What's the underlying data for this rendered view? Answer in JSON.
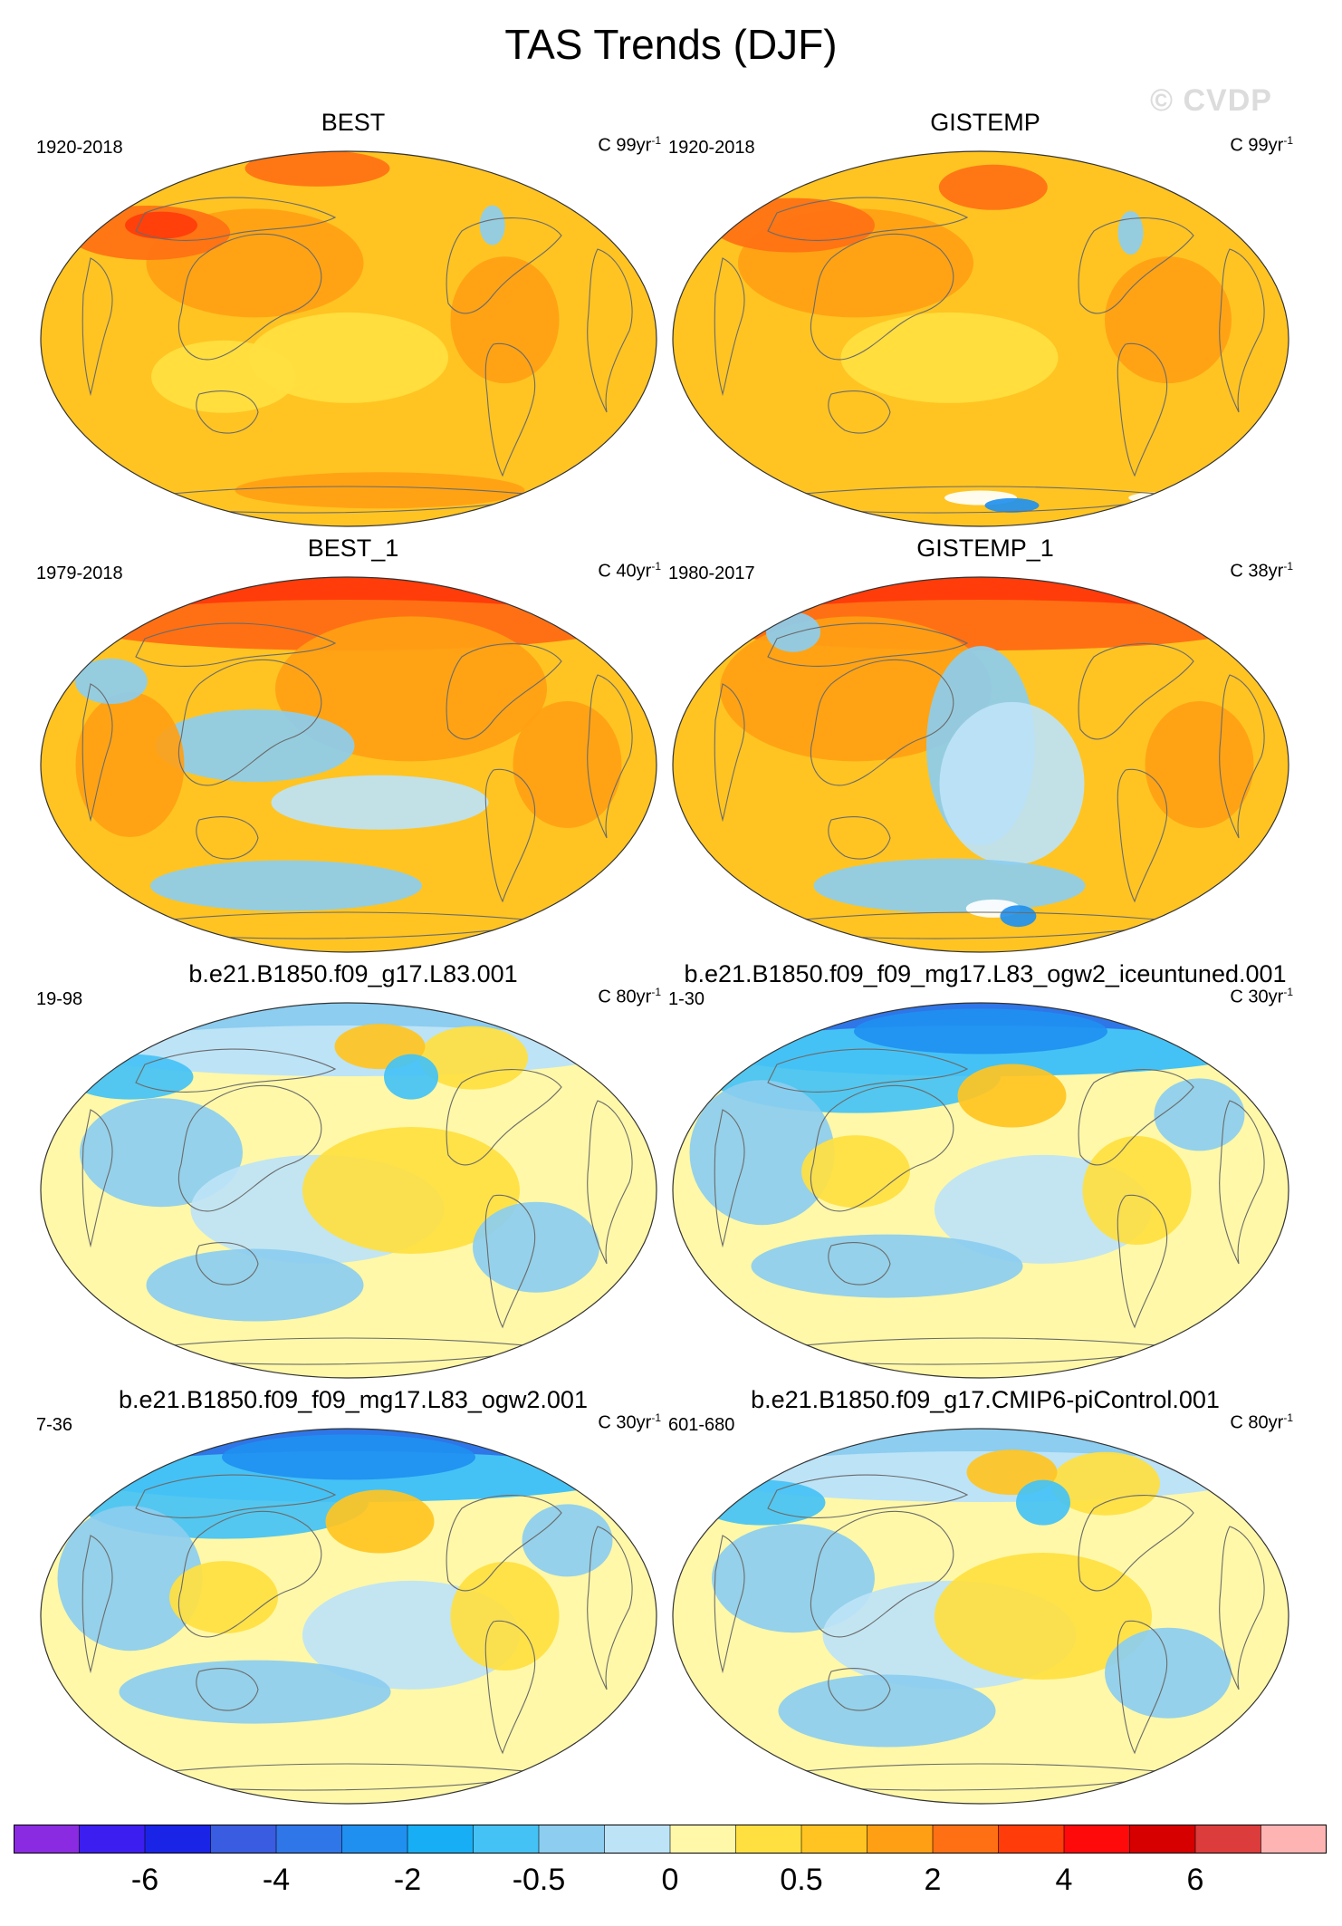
{
  "title": "TAS Trends (DJF)",
  "watermark": "© CVDP",
  "panels": [
    {
      "title": "BEST",
      "period": "1920-2018",
      "units_prefix": "C 99yr",
      "units_exp": "-1",
      "scheme": "warm_strong"
    },
    {
      "title": "GISTEMP",
      "period": "1920-2018",
      "units_prefix": "C 99yr",
      "units_exp": "-1",
      "scheme": "warm_strong_missing"
    },
    {
      "title": "BEST_1",
      "period": "1979-2018",
      "units_prefix": "C 40yr",
      "units_exp": "-1",
      "scheme": "warm_arctic"
    },
    {
      "title": "GISTEMP_1",
      "period": "1980-2017",
      "units_prefix": "C 38yr",
      "units_exp": "-1",
      "scheme": "warm_arctic_missing"
    },
    {
      "title": "b.e21.B1850.f09_g17.L83.001",
      "period": "19-98",
      "units_prefix": "C 80yr",
      "units_exp": "-1",
      "scheme": "mixed"
    },
    {
      "title": "b.e21.B1850.f09_f09_mg17.L83_ogw2_iceuntuned.001",
      "period": "1-30",
      "units_prefix": "C 30yr",
      "units_exp": "-1",
      "scheme": "mixed_cold"
    },
    {
      "title": "b.e21.B1850.f09_f09_mg17.L83_ogw2.001",
      "period": "7-36",
      "units_prefix": "C 30yr",
      "units_exp": "-1",
      "scheme": "mixed_cold"
    },
    {
      "title": "b.e21.B1850.f09_g17.CMIP6-piControl.001",
      "period": "601-680",
      "units_prefix": "C 80yr",
      "units_exp": "-1",
      "scheme": "mixed"
    }
  ],
  "colorbar": {
    "colors": [
      "#8a2be2",
      "#3c1ef0",
      "#1a24e6",
      "#3a5ce0",
      "#2f76e8",
      "#2090f0",
      "#18aef5",
      "#44c2f5",
      "#8ccdf0",
      "#bde3f7",
      "#fff8a8",
      "#ffe040",
      "#ffc422",
      "#ffa014",
      "#ff7014",
      "#ff3c0a",
      "#ff0a0a",
      "#d60000",
      "#dc3c3c",
      "#ffb4b4"
    ],
    "labels": [
      "-6",
      "-4",
      "-2",
      "-0.5",
      "0",
      "0.5",
      "2",
      "4",
      "6"
    ],
    "label_boundaries": [
      2,
      4,
      6,
      8,
      10,
      12,
      14,
      16,
      18
    ]
  }
}
